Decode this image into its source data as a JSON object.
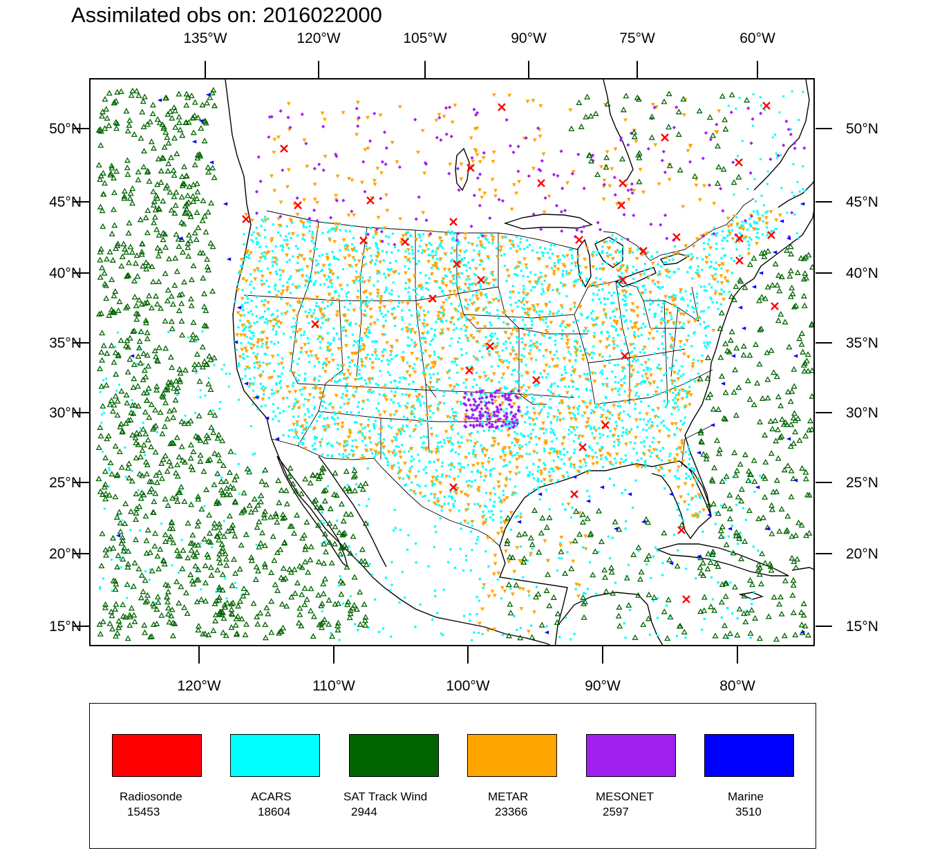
{
  "title": "Assimilated obs on: 2016022000",
  "top_lon_labels": [
    "135°W",
    "120°W",
    "105°W",
    "90°W",
    "75°W",
    "60°W"
  ],
  "bottom_lon_labels": [
    "120°W",
    "110°W",
    "100°W",
    "90°W",
    "80°W"
  ],
  "lat_labels": [
    "50°N",
    "45°N",
    "40°N",
    "35°N",
    "30°N",
    "25°N",
    "20°N",
    "15°N"
  ],
  "legend": [
    {
      "name": "Radiosonde",
      "count": "15453",
      "color": "#ff0000"
    },
    {
      "name": "ACARS",
      "count": "18604",
      "color": "#00ffff"
    },
    {
      "name": "SAT Track Wind",
      "count": "2944",
      "color": "#006400"
    },
    {
      "name": "METAR",
      "count": "23366",
      "color": "#ffa500"
    },
    {
      "name": "MESONET",
      "count": "2597",
      "color": "#a020f0"
    },
    {
      "name": "Marine",
      "count": "3510",
      "color": "#0000ff"
    }
  ],
  "colors": {
    "radiosonde": "#ff0000",
    "radiosonde_edge": "#ff3300",
    "acars": "#00ffff",
    "sat_track_wind": "#006400",
    "metar": "#ffa500",
    "mesonet": "#a020f0",
    "marine": "#0000ff",
    "coast": "#000000",
    "frame": "#000000"
  }
}
